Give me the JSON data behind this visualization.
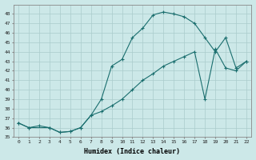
{
  "xlabel": "Humidex (Indice chaleur)",
  "bg_color": "#cce8e8",
  "line_color": "#1a6e6e",
  "grid_color": "#aacccc",
  "line1_x": [
    0,
    1,
    2,
    3,
    4,
    5,
    6,
    7,
    8,
    9,
    10,
    11,
    12,
    13,
    14,
    15,
    16,
    17,
    18,
    19,
    20,
    21,
    22
  ],
  "line1_y": [
    36.5,
    36.0,
    36.2,
    36.0,
    35.5,
    35.6,
    36.0,
    37.3,
    39.0,
    42.5,
    43.2,
    45.5,
    46.5,
    47.9,
    48.2,
    48.0,
    47.7,
    47.0,
    45.5,
    44.0,
    45.5,
    42.3,
    43.0
  ],
  "line2_x": [
    0,
    1,
    3,
    4,
    5,
    6,
    7,
    8,
    9,
    10,
    11,
    12,
    13,
    14,
    15,
    16,
    17,
    18,
    19,
    20,
    21,
    22
  ],
  "line2_y": [
    36.5,
    36.0,
    36.0,
    35.5,
    35.6,
    36.0,
    37.3,
    37.7,
    38.3,
    39.0,
    40.0,
    41.0,
    41.7,
    42.5,
    43.0,
    43.5,
    44.0,
    39.0,
    44.3,
    42.3,
    42.0,
    43.0
  ],
  "ylim": [
    35,
    49
  ],
  "xlim_min": -0.5,
  "xlim_max": 22.5,
  "yticks": [
    35,
    36,
    37,
    38,
    39,
    40,
    41,
    42,
    43,
    44,
    45,
    46,
    47,
    48
  ],
  "xticks": [
    0,
    1,
    2,
    3,
    4,
    5,
    6,
    7,
    8,
    9,
    10,
    11,
    12,
    13,
    14,
    15,
    16,
    17,
    18,
    19,
    20,
    21,
    22
  ]
}
